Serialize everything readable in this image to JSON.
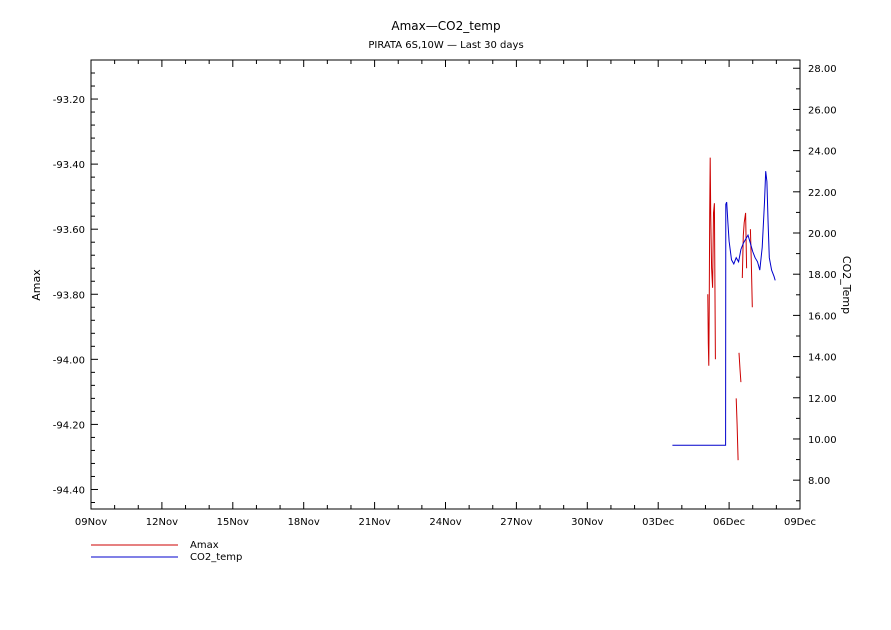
{
  "chart_data": {
    "type": "line",
    "title": "Amax—CO2_temp",
    "subtitle": "PIRATA 6S,10W — Last 30 days",
    "x_axis": {
      "ticks": [
        "09Nov",
        "12Nov",
        "15Nov",
        "18Nov",
        "21Nov",
        "24Nov",
        "27Nov",
        "30Nov",
        "03Dec",
        "06Dec",
        "09Dec"
      ],
      "range_days": [
        0,
        30
      ]
    },
    "y_left": {
      "label": "Amax",
      "range": [
        -94.46,
        -93.08
      ],
      "ticks": [
        -93.2,
        -93.4,
        -93.6,
        -93.8,
        -94.0,
        -94.2,
        -94.4
      ],
      "tick_labels": [
        "-93.20",
        "-93.40",
        "-93.60",
        "-93.80",
        "-94.00",
        "-94.20",
        "-94.40"
      ]
    },
    "y_right": {
      "label": "CO2_Temp",
      "range": [
        6.6,
        28.4
      ],
      "ticks": [
        8,
        10,
        12,
        14,
        16,
        18,
        20,
        22,
        24,
        26,
        28
      ],
      "tick_labels": [
        "8.00",
        "10.00",
        "12.00",
        "14.00",
        "16.00",
        "18.00",
        "20.00",
        "22.00",
        "24.00",
        "26.00",
        "28.00"
      ]
    },
    "series": [
      {
        "name": "Amax",
        "color": "#cc0000",
        "axis": "left",
        "segments": [
          [
            [
              26.1,
              -93.8
            ],
            [
              26.12,
              -93.95
            ],
            [
              26.14,
              -94.02
            ],
            [
              26.16,
              -93.85
            ],
            [
              26.18,
              -93.55
            ],
            [
              26.2,
              -93.38
            ],
            [
              26.22,
              -93.55
            ],
            [
              26.26,
              -93.72
            ],
            [
              26.3,
              -93.78
            ],
            [
              26.34,
              -93.55
            ],
            [
              26.38,
              -93.52
            ],
            [
              26.42,
              -94.0
            ]
          ],
          [
            [
              27.3,
              -94.12
            ],
            [
              27.34,
              -94.2
            ],
            [
              27.38,
              -94.31
            ]
          ],
          [
            [
              27.42,
              -93.98
            ],
            [
              27.46,
              -94.03
            ],
            [
              27.5,
              -94.07
            ]
          ],
          [
            [
              27.56,
              -93.75
            ],
            [
              27.6,
              -93.62
            ],
            [
              27.64,
              -93.58
            ],
            [
              27.7,
              -93.55
            ],
            [
              27.74,
              -93.72
            ]
          ],
          [
            [
              27.9,
              -93.6
            ],
            [
              27.94,
              -93.7
            ],
            [
              27.98,
              -93.84
            ]
          ]
        ]
      },
      {
        "name": "CO2_temp",
        "color": "#0000cc",
        "axis": "right",
        "segments": [
          [
            [
              24.6,
              9.7
            ],
            [
              26.85,
              9.7
            ],
            [
              26.86,
              21.4
            ],
            [
              26.9,
              21.5
            ],
            [
              26.95,
              20.5
            ],
            [
              27.0,
              19.6
            ],
            [
              27.1,
              18.7
            ],
            [
              27.2,
              18.5
            ],
            [
              27.3,
              18.8
            ],
            [
              27.4,
              18.6
            ],
            [
              27.5,
              19.2
            ],
            [
              27.6,
              19.5
            ],
            [
              27.7,
              19.7
            ],
            [
              27.8,
              19.9
            ],
            [
              27.9,
              19.5
            ],
            [
              28.0,
              19.1
            ],
            [
              28.1,
              18.8
            ],
            [
              28.2,
              18.6
            ],
            [
              28.3,
              18.2
            ],
            [
              28.4,
              19.3
            ],
            [
              28.5,
              21.5
            ],
            [
              28.55,
              23.0
            ],
            [
              28.6,
              22.5
            ],
            [
              28.65,
              20.5
            ],
            [
              28.7,
              18.8
            ],
            [
              28.8,
              18.2
            ],
            [
              28.9,
              17.9
            ],
            [
              28.95,
              17.7
            ]
          ]
        ]
      }
    ],
    "legend": [
      {
        "name": "Amax",
        "color": "#cc0000"
      },
      {
        "name": "CO2_temp",
        "color": "#0000cc"
      }
    ],
    "legend_position": "bottom-left",
    "grid": false
  }
}
